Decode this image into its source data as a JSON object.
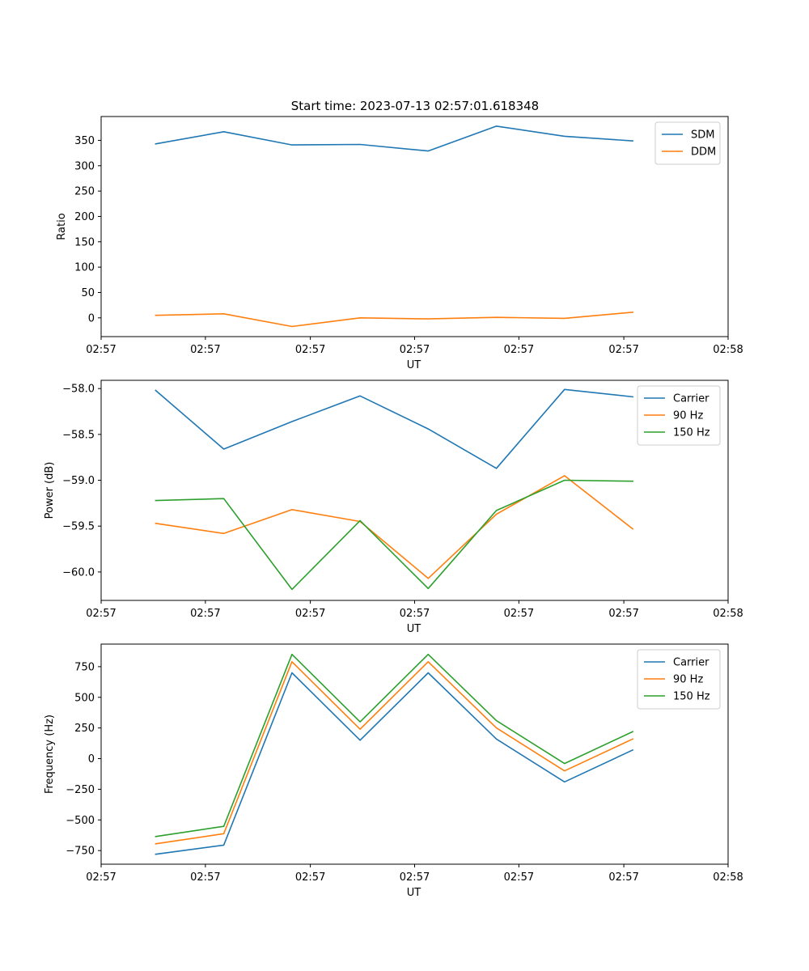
{
  "figure": {
    "title": "Start time: 2023-07-13 02:57:01.618348"
  },
  "colors": {
    "blue": "#1f77b4",
    "orange": "#ff7f0e",
    "green": "#2ca02c"
  },
  "chart_data": [
    {
      "type": "line",
      "title": "Start time: 2023-07-13 02:57:01.618348",
      "xlabel": "UT",
      "ylabel": "Ratio",
      "x": [
        1,
        2,
        3,
        4,
        5,
        6,
        7,
        8
      ],
      "xlim": [
        0.2,
        9.4
      ],
      "x_ticks": [
        0.2,
        1.73,
        3.27,
        4.8,
        6.33,
        7.87,
        9.4
      ],
      "x_tick_labels": [
        "02:57",
        "02:57",
        "02:57",
        "02:57",
        "02:57",
        "02:57",
        "02:58"
      ],
      "ylim": [
        -37,
        397
      ],
      "y_ticks": [
        0,
        50,
        100,
        150,
        200,
        250,
        300,
        350
      ],
      "y_tick_labels": [
        "0",
        "50",
        "100",
        "150",
        "200",
        "250",
        "300",
        "350"
      ],
      "legend": "top-right",
      "series": [
        {
          "name": "SDM",
          "color": "#1f77b4",
          "values": [
            343,
            367,
            341,
            342,
            329,
            378,
            358,
            349
          ]
        },
        {
          "name": "DDM",
          "color": "#ff7f0e",
          "values": [
            5,
            8,
            -17,
            0,
            -2,
            1,
            -1,
            11
          ]
        }
      ]
    },
    {
      "type": "line",
      "title": "",
      "xlabel": "UT",
      "ylabel": "Power (dB)",
      "x": [
        1,
        2,
        3,
        4,
        5,
        6,
        7,
        8
      ],
      "xlim": [
        0.2,
        9.4
      ],
      "x_ticks": [
        0.2,
        1.73,
        3.27,
        4.8,
        6.33,
        7.87,
        9.4
      ],
      "x_tick_labels": [
        "02:57",
        "02:57",
        "02:57",
        "02:57",
        "02:57",
        "02:57",
        "02:58"
      ],
      "ylim": [
        -60.31,
        -57.91
      ],
      "y_ticks": [
        -60.0,
        -59.5,
        -59.0,
        -58.5,
        -58.0
      ],
      "y_tick_labels": [
        "−60.0",
        "−59.5",
        "−59.0",
        "−58.5",
        "−58.0"
      ],
      "legend": "top-right",
      "series": [
        {
          "name": "Carrier",
          "color": "#1f77b4",
          "values": [
            -58.02,
            -58.66,
            -58.36,
            -58.08,
            -58.44,
            -58.87,
            -58.01,
            -58.09
          ]
        },
        {
          "name": "90 Hz",
          "color": "#ff7f0e",
          "values": [
            -59.47,
            -59.58,
            -59.32,
            -59.45,
            -60.07,
            -59.37,
            -58.95,
            -59.53
          ]
        },
        {
          "name": "150 Hz",
          "color": "#2ca02c",
          "values": [
            -59.22,
            -59.2,
            -60.19,
            -59.44,
            -60.18,
            -59.33,
            -59.0,
            -59.01
          ]
        }
      ]
    },
    {
      "type": "line",
      "title": "",
      "xlabel": "UT",
      "ylabel": "Frequency (Hz)",
      "x": [
        1,
        2,
        3,
        4,
        5,
        6,
        7,
        8
      ],
      "xlim": [
        0.2,
        9.4
      ],
      "x_ticks": [
        0.2,
        1.73,
        3.27,
        4.8,
        6.33,
        7.87,
        9.4
      ],
      "x_tick_labels": [
        "02:57",
        "02:57",
        "02:57",
        "02:57",
        "02:57",
        "02:57",
        "02:58"
      ],
      "ylim": [
        -861,
        934
      ],
      "y_ticks": [
        -750,
        -500,
        -250,
        0,
        250,
        500,
        750
      ],
      "y_tick_labels": [
        "−750",
        "−500",
        "−250",
        "0",
        "250",
        "500",
        "750"
      ],
      "legend": "top-right",
      "series": [
        {
          "name": "Carrier",
          "color": "#1f77b4",
          "values": [
            -780,
            -705,
            700,
            150,
            700,
            160,
            -190,
            70
          ]
        },
        {
          "name": "90 Hz",
          "color": "#ff7f0e",
          "values": [
            -695,
            -612,
            790,
            240,
            790,
            250,
            -100,
            160
          ]
        },
        {
          "name": "150 Hz",
          "color": "#2ca02c",
          "values": [
            -635,
            -552,
            850,
            300,
            850,
            310,
            -40,
            220
          ]
        }
      ]
    }
  ]
}
